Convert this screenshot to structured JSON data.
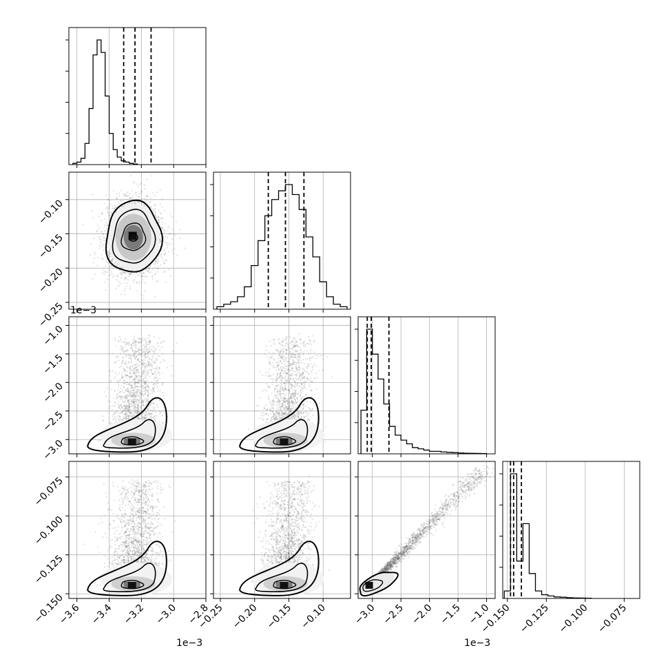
{
  "chart_data": {
    "type": "corner",
    "parameters": 4,
    "axes": [
      {
        "index": 0,
        "range": [
          -3.65,
          -2.8
        ],
        "ticks": [
          -3.6,
          -3.4,
          -3.2,
          -3.0,
          -2.8
        ],
        "tick_labels": [
          "−3.6",
          "−3.4",
          "−3.2",
          "−3.0",
          "−2.8"
        ],
        "multiplier": "1e−3"
      },
      {
        "index": 1,
        "range": [
          -0.26,
          -0.06
        ],
        "ticks": [
          -0.25,
          -0.2,
          -0.15,
          -0.1
        ],
        "tick_labels": [
          "−0.25",
          "−0.20",
          "−0.15",
          "−0.10"
        ],
        "multiplier": ""
      },
      {
        "index": 2,
        "range": [
          -3.25,
          -0.85
        ],
        "ticks": [
          -3.0,
          -2.5,
          -2.0,
          -1.5,
          -1.0
        ],
        "tick_labels": [
          "−3.0",
          "−2.5",
          "−2.0",
          "−1.5",
          "−1.0"
        ],
        "multiplier": "1e−3"
      },
      {
        "index": 3,
        "range": [
          -0.153,
          -0.065
        ],
        "ticks": [
          -0.15,
          -0.125,
          -0.1,
          -0.075
        ],
        "tick_labels": [
          "−0.150",
          "−0.125",
          "−0.100",
          "−0.075"
        ],
        "multiplier": ""
      }
    ],
    "marginals": [
      {
        "param": 0,
        "bin_start": -3.625,
        "bin_width": 0.025,
        "counts": [
          1,
          2,
          5,
          17,
          45,
          88,
          100,
          90,
          55,
          25,
          12,
          6,
          3,
          2,
          1,
          0.5
        ],
        "quantiles": [
          -3.31,
          -3.24,
          -3.14
        ]
      },
      {
        "param": 1,
        "bin_start": -0.255,
        "bin_width": 0.01,
        "counts": [
          2,
          4,
          6,
          10,
          18,
          35,
          55,
          75,
          88,
          95,
          100,
          92,
          80,
          58,
          42,
          22,
          10,
          4,
          2
        ],
        "quantiles": [
          -0.18,
          -0.155,
          -0.128
        ]
      },
      {
        "param": 2,
        "bin_start": -3.2,
        "bin_width": 0.1,
        "counts": [
          35,
          100,
          80,
          60,
          40,
          22,
          15,
          11,
          8,
          5,
          4,
          3,
          2,
          2,
          1.5,
          1.2,
          1,
          0.7,
          0.5,
          0.4,
          0.3,
          0.2
        ],
        "quantiles": [
          -3.09,
          -3.02,
          -2.71
        ]
      },
      {
        "param": 3,
        "bin_start": -0.152,
        "bin_width": 0.004,
        "counts": [
          6,
          100,
          30,
          60,
          20,
          6,
          3,
          2,
          1.2,
          1,
          0.6,
          0.4,
          0.3,
          0.2
        ],
        "quantiles": [
          -0.148,
          -0.146,
          -0.141
        ]
      }
    ],
    "joint_pairs": [
      {
        "row": 1,
        "col": 0,
        "center": [
          -3.25,
          -0.155
        ],
        "sd": [
          0.09,
          0.027
        ],
        "shape": "ellipse"
      },
      {
        "row": 2,
        "col": 0,
        "mode": [
          -3.25,
          -3.05
        ],
        "shape": "skewed-up"
      },
      {
        "row": 2,
        "col": 1,
        "mode": [
          -0.155,
          -3.05
        ],
        "shape": "skewed-up"
      },
      {
        "row": 3,
        "col": 0,
        "mode": [
          -3.25,
          -0.145
        ],
        "shape": "skewed-up"
      },
      {
        "row": 3,
        "col": 1,
        "mode": [
          -0.155,
          -0.145
        ],
        "shape": "skewed-up"
      },
      {
        "row": 3,
        "col": 2,
        "mode": [
          -3.05,
          -0.145
        ],
        "shape": "linear",
        "line_end": [
          -1.05,
          -0.07
        ]
      }
    ],
    "grid": true,
    "title": "",
    "legend": ""
  }
}
